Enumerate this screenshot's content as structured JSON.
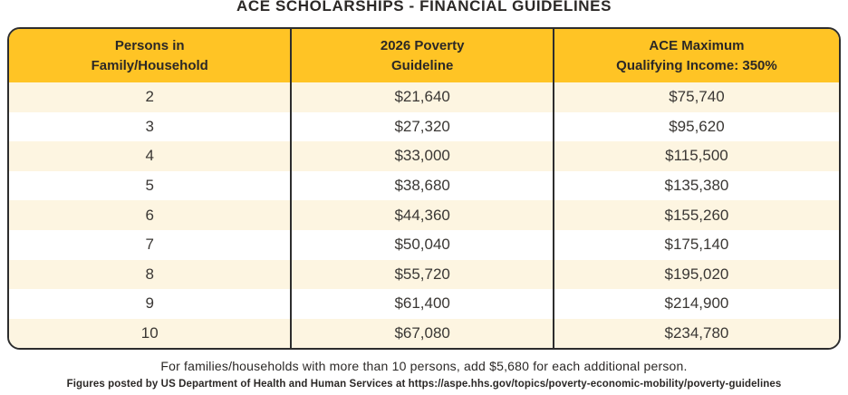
{
  "page": {
    "title": "ACE SCHOLARSHIPS - FINANCIAL GUIDELINES"
  },
  "table": {
    "headers": [
      "Persons in\nFamily/Household",
      "2026 Poverty\nGuideline",
      "ACE Maximum\nQualifying Income: 350%"
    ],
    "rows": [
      {
        "persons": "2",
        "guideline": "$21,640",
        "max_income": "$75,740"
      },
      {
        "persons": "3",
        "guideline": "$27,320",
        "max_income": "$95,620"
      },
      {
        "persons": "4",
        "guideline": "$33,000",
        "max_income": "$115,500"
      },
      {
        "persons": "5",
        "guideline": "$38,680",
        "max_income": "$135,380"
      },
      {
        "persons": "6",
        "guideline": "$44,360",
        "max_income": "$155,260"
      },
      {
        "persons": "7",
        "guideline": "$50,040",
        "max_income": "$175,140"
      },
      {
        "persons": "8",
        "guideline": "$55,720",
        "max_income": "$195,020"
      },
      {
        "persons": "9",
        "guideline": "$61,400",
        "max_income": "$214,900"
      },
      {
        "persons": "10",
        "guideline": "$67,080",
        "max_income": "$234,780"
      }
    ]
  },
  "footnotes": {
    "line1": "For families/households with more than 10 persons, add $5,680 for each additional person.",
    "line2": "Figures posted by US Department of Health and Human Services at https://aspe.hhs.gov/topics/poverty-economic-mobility/poverty-guidelines"
  },
  "colors": {
    "header_yellow": "#FFC425",
    "row_cream": "#FDF5E1",
    "row_white": "#FFFFFF",
    "border_dark": "#2D2D2D",
    "text_dark": "#2B2826"
  }
}
